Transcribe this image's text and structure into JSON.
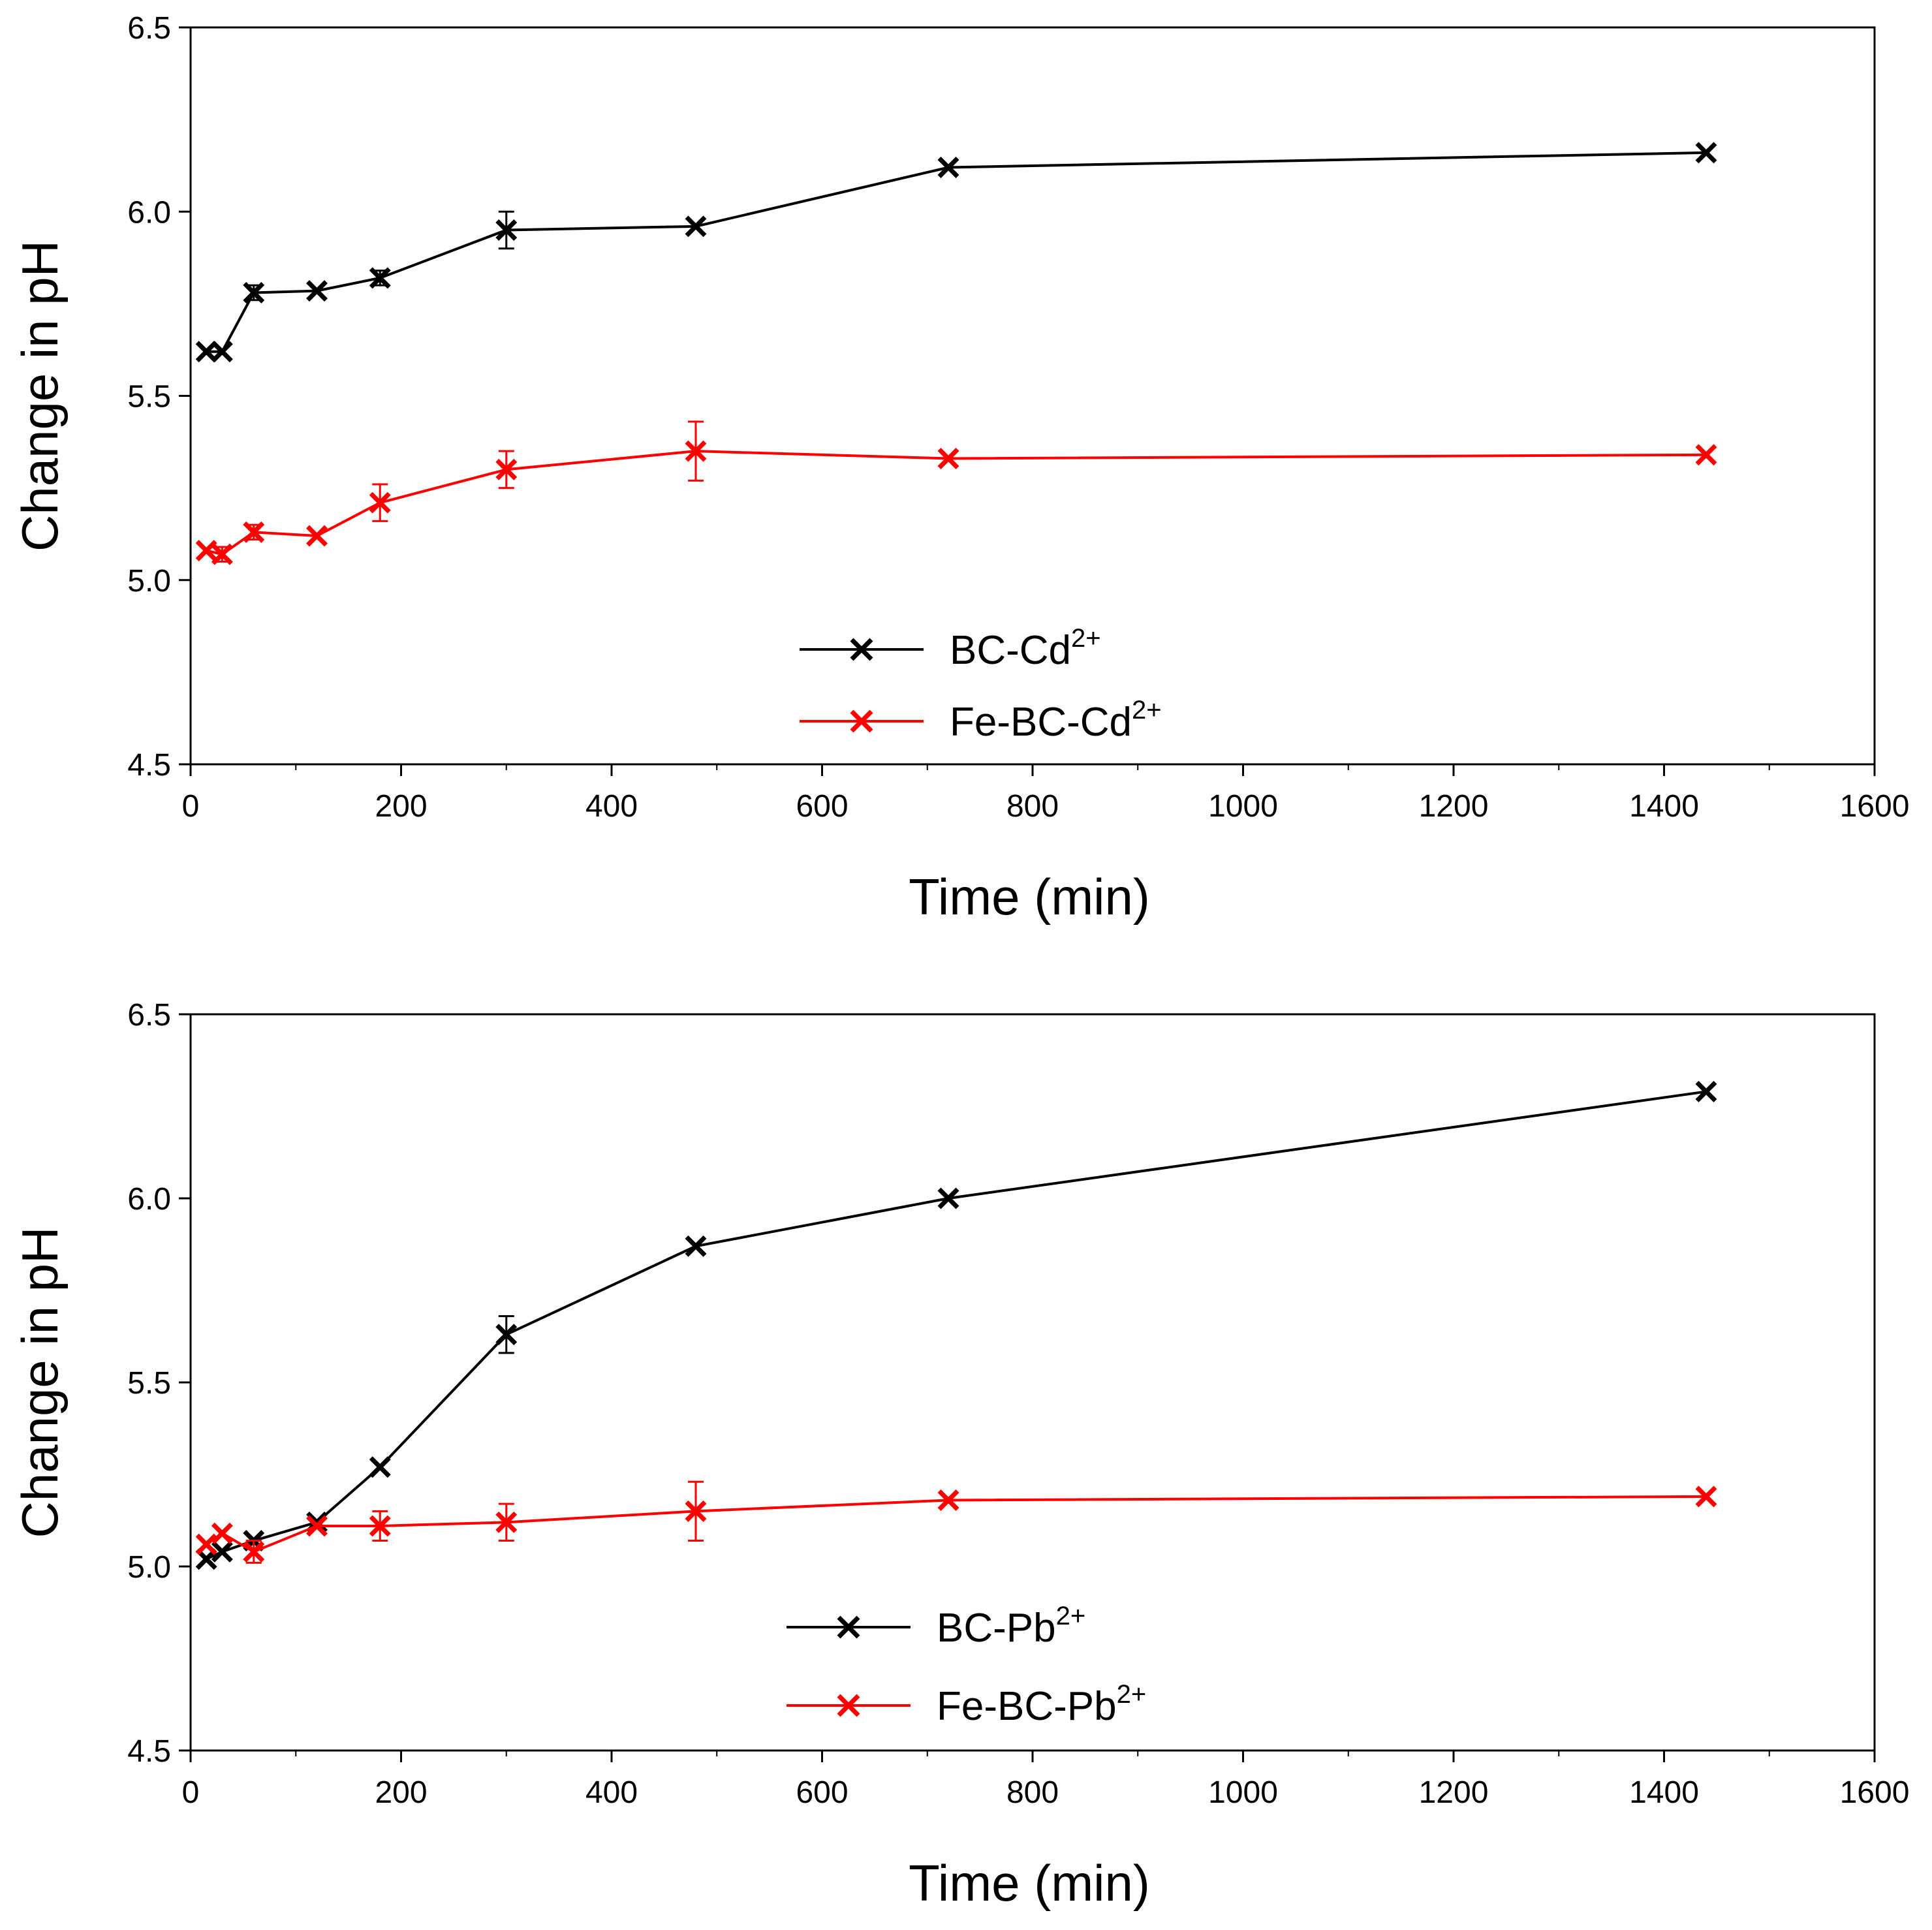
{
  "chart_data": [
    {
      "type": "line",
      "title": "",
      "xlabel": "Time (min)",
      "ylabel": "Change in pH",
      "xlim": [
        0,
        1600
      ],
      "ylim": [
        4.5,
        6.5
      ],
      "xticks": [
        0,
        200,
        400,
        600,
        800,
        1000,
        1200,
        1400,
        1600
      ],
      "xtick_labels": [
        "0",
        "200",
        "400",
        "600",
        "800",
        "1000",
        "1200",
        "1400",
        "1600"
      ],
      "yticks": [
        4.5,
        5.0,
        5.5,
        6.0,
        6.5
      ],
      "ytick_labels": [
        "4.5",
        "5.0",
        "5.5",
        "6.0",
        "6.5"
      ],
      "grid": false,
      "legend_position": "bottom-center",
      "series": [
        {
          "name": "BC-Cd2+",
          "label_main": "BC-Cd",
          "label_sup": "2+",
          "color": "#000000",
          "marker": "x",
          "x": [
            15,
            30,
            60,
            120,
            180,
            300,
            480,
            720,
            1440
          ],
          "y": [
            5.62,
            5.62,
            5.78,
            5.785,
            5.82,
            5.95,
            5.96,
            6.12,
            6.16
          ],
          "err": [
            0.01,
            0.01,
            0.02,
            0.01,
            0.02,
            0.05,
            0.01,
            0.01,
            0.01
          ]
        },
        {
          "name": "Fe-BC-Cd2+",
          "label_main": "Fe-BC-Cd",
          "label_sup": "2+",
          "color": "#ff0000",
          "marker": "x",
          "x": [
            15,
            30,
            60,
            120,
            180,
            300,
            480,
            720,
            1440
          ],
          "y": [
            5.08,
            5.07,
            5.13,
            5.12,
            5.21,
            5.3,
            5.35,
            5.33,
            5.34
          ],
          "err": [
            0.01,
            0.02,
            0.02,
            0.01,
            0.05,
            0.05,
            0.08,
            0.01,
            0.01
          ]
        }
      ]
    },
    {
      "type": "line",
      "title": "",
      "xlabel": "Time (min)",
      "ylabel": "Change in pH",
      "xlim": [
        0,
        1600
      ],
      "ylim": [
        4.5,
        6.5
      ],
      "xticks": [
        0,
        200,
        400,
        600,
        800,
        1000,
        1200,
        1400,
        1600
      ],
      "xtick_labels": [
        "0",
        "200",
        "400",
        "600",
        "800",
        "1000",
        "1200",
        "1400",
        "1600"
      ],
      "yticks": [
        4.5,
        5.0,
        5.5,
        6.0,
        6.5
      ],
      "ytick_labels": [
        "4.5",
        "5.0",
        "5.5",
        "6.0",
        "6.5"
      ],
      "grid": false,
      "legend_position": "bottom-center",
      "series": [
        {
          "name": "BC-Pb2+",
          "label_main": "BC-Pb",
          "label_sup": "2+",
          "color": "#000000",
          "marker": "x",
          "x": [
            15,
            30,
            60,
            120,
            180,
            300,
            480,
            720,
            1440
          ],
          "y": [
            5.02,
            5.04,
            5.07,
            5.12,
            5.27,
            5.63,
            5.87,
            6.0,
            6.29
          ],
          "err": [
            0.01,
            0.01,
            0.01,
            0.01,
            0.01,
            0.05,
            0.01,
            0.01,
            0.01
          ]
        },
        {
          "name": "Fe-BC-Pb2+",
          "label_main": "Fe-BC-Pb",
          "label_sup": "2+",
          "color": "#ff0000",
          "marker": "x",
          "x": [
            15,
            30,
            60,
            120,
            180,
            300,
            480,
            720,
            1440
          ],
          "y": [
            5.06,
            5.09,
            5.04,
            5.11,
            5.11,
            5.12,
            5.15,
            5.18,
            5.19
          ],
          "err": [
            0.01,
            0.01,
            0.03,
            0.01,
            0.04,
            0.05,
            0.08,
            0.01,
            0.01
          ]
        }
      ]
    }
  ]
}
